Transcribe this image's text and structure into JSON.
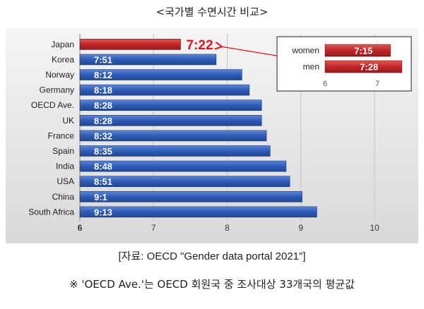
{
  "title": "<국가별 수면시간 비교>",
  "source": "[자료: OECD \"Gender data portal 2021\"]",
  "note": "※ 'OECD Ave.'는 OECD 회원국 중 조사대상 33개국의 평균값",
  "colors": {
    "blue": "#2f5bb7",
    "red": "#c0262a",
    "japan_label": "#e8141c"
  },
  "chart_data": {
    "type": "bar",
    "orientation": "horizontal",
    "unit": "hours",
    "xlim": [
      6,
      10
    ],
    "xticks": [
      "6",
      "7",
      "8",
      "9",
      "10"
    ],
    "categories": [
      "Japan",
      "Korea",
      "Norway",
      "Germany",
      "OECD Ave.",
      "UK",
      "France",
      "Spain",
      "India",
      "USA",
      "China",
      "South Africa"
    ],
    "values": [
      7.367,
      7.85,
      8.2,
      8.3,
      8.467,
      8.467,
      8.533,
      8.583,
      8.8,
      8.85,
      9.017,
      9.217
    ],
    "labels": [
      "7:22",
      "7:51",
      "8:12",
      "8:18",
      "8:28",
      "8:28",
      "8:32",
      "8:35",
      "8:48",
      "8:51",
      "9:1",
      "9:13"
    ],
    "inset": {
      "categories": [
        "women",
        "men"
      ],
      "values": [
        7.25,
        7.467
      ],
      "labels": [
        "7:15",
        "7:28"
      ],
      "xticks": [
        "6",
        "7"
      ],
      "xlim": [
        6,
        7
      ]
    }
  }
}
